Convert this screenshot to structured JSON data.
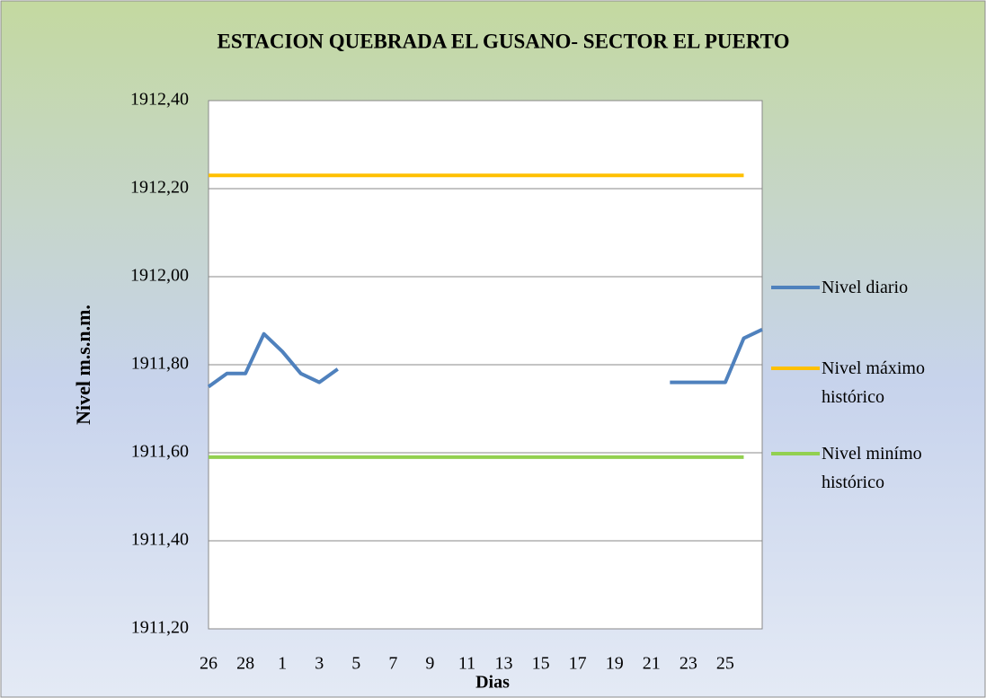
{
  "chart_data": {
    "type": "line",
    "title": "ESTACION QUEBRADA  EL GUSANO- SECTOR EL PUERTO",
    "x_label": "Dias",
    "y_label": "Nivel m.s.n.m.",
    "categories": [
      "26",
      null,
      "28",
      null,
      "1",
      null,
      "3",
      null,
      "5",
      null,
      "7",
      null,
      "9",
      null,
      "11",
      null,
      "13",
      null,
      "15",
      null,
      "17",
      null,
      "19",
      null,
      "21",
      null,
      "23",
      null,
      "25",
      null,
      null
    ],
    "series": [
      {
        "name": "Nivel diario",
        "color": "#4f81bd",
        "values": [
          1911.75,
          1911.78,
          1911.78,
          1911.87,
          1911.83,
          1911.78,
          1911.76,
          1911.79,
          null,
          null,
          null,
          null,
          null,
          null,
          null,
          null,
          null,
          null,
          null,
          null,
          null,
          null,
          null,
          null,
          null,
          1911.76,
          1911.76,
          1911.76,
          1911.76,
          1911.86,
          1911.88
        ]
      },
      {
        "name": "Nivel máximo histórico",
        "color": "#ffc000",
        "values": [
          1912.23,
          1912.23,
          1912.23,
          1912.23,
          1912.23,
          1912.23,
          1912.23,
          1912.23,
          1912.23,
          1912.23,
          1912.23,
          1912.23,
          1912.23,
          1912.23,
          1912.23,
          1912.23,
          1912.23,
          1912.23,
          1912.23,
          1912.23,
          1912.23,
          1912.23,
          1912.23,
          1912.23,
          1912.23,
          1912.23,
          1912.23,
          1912.23,
          1912.23,
          1912.23,
          null
        ]
      },
      {
        "name": "Nivel minímo histórico",
        "color": "#92d050",
        "values": [
          1911.59,
          1911.59,
          1911.59,
          1911.59,
          1911.59,
          1911.59,
          1911.59,
          1911.59,
          1911.59,
          1911.59,
          1911.59,
          1911.59,
          1911.59,
          1911.59,
          1911.59,
          1911.59,
          1911.59,
          1911.59,
          1911.59,
          1911.59,
          1911.59,
          1911.59,
          1911.59,
          1911.59,
          1911.59,
          1911.59,
          1911.59,
          1911.59,
          1911.59,
          1911.59,
          null
        ]
      }
    ],
    "ylim": [
      1911.2,
      1912.4
    ],
    "yticks": [
      {
        "value": 1911.2,
        "label": "1911,20"
      },
      {
        "value": 1911.4,
        "label": "1911,40"
      },
      {
        "value": 1911.6,
        "label": "1911,60"
      },
      {
        "value": 1911.8,
        "label": "1911,80"
      },
      {
        "value": 1912.0,
        "label": "1912,00"
      },
      {
        "value": 1912.2,
        "label": "1912,20"
      },
      {
        "value": 1912.4,
        "label": "1912,40"
      }
    ],
    "grid": true,
    "legend": "right"
  }
}
